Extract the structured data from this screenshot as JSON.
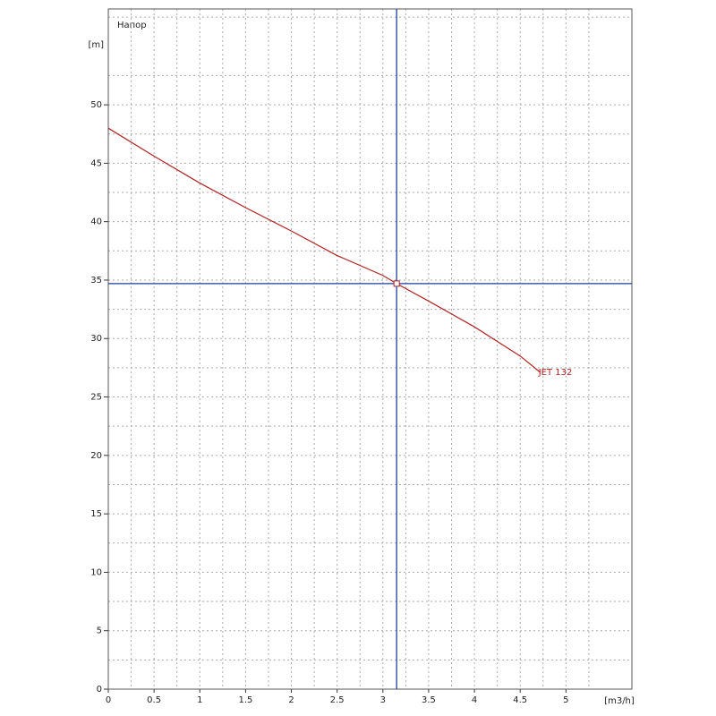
{
  "chart_data": {
    "type": "line",
    "title": "Напор",
    "y_label": "[m]",
    "x_label": "[m3/h]",
    "x": [
      0,
      0.5,
      1,
      1.5,
      2,
      2.5,
      3,
      3.15,
      3.5,
      4,
      4.5,
      4.72
    ],
    "series": [
      {
        "name": "JET 132",
        "color": "#b22222",
        "values": [
          48,
          45.6,
          43.3,
          41.2,
          39.2,
          37.1,
          35.4,
          34.7,
          33.2,
          31,
          28.5,
          27.1
        ]
      }
    ],
    "operating_point": {
      "x": 3.15,
      "y": 34.7,
      "color": "#1f3f9f"
    },
    "xlim": [
      0,
      5.72
    ],
    "ylim": [
      0,
      58.2
    ],
    "xticks": [
      0,
      0.5,
      1,
      1.5,
      2,
      2.5,
      3,
      3.5,
      4,
      4.5,
      5
    ],
    "yticks": [
      0,
      5,
      10,
      15,
      20,
      25,
      30,
      35,
      40,
      45,
      50
    ],
    "grid": true
  }
}
